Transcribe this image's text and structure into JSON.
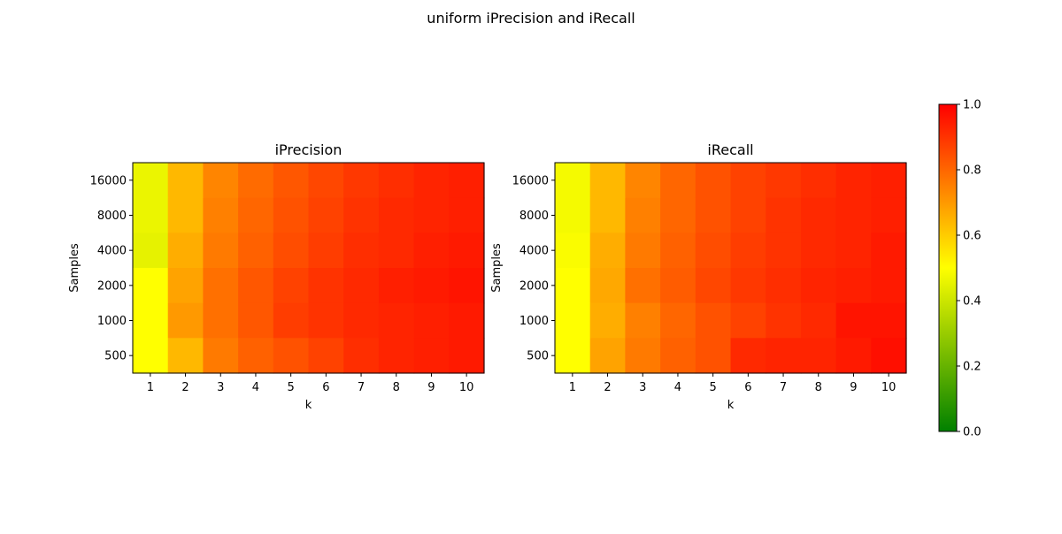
{
  "title": "uniform iPrecision and iRecall",
  "colorbar": {
    "ticks": [
      "0.0",
      "0.2",
      "0.4",
      "0.6",
      "0.8",
      "1.0"
    ],
    "tick_values": [
      0.0,
      0.2,
      0.4,
      0.6,
      0.8,
      1.0
    ],
    "colors": [
      "#008000",
      "#ffff00",
      "#ff0000"
    ]
  },
  "chart_data": [
    {
      "type": "heatmap",
      "title": "iPrecision",
      "xlabel": "k",
      "ylabel": "Samples",
      "x": [
        "1",
        "2",
        "3",
        "4",
        "5",
        "6",
        "7",
        "8",
        "9",
        "10"
      ],
      "y": [
        "16000",
        "8000",
        "4000",
        "2000",
        "1000",
        "500"
      ],
      "zlim": [
        0,
        1
      ],
      "values": [
        [
          0.46,
          0.64,
          0.74,
          0.79,
          0.83,
          0.86,
          0.89,
          0.91,
          0.93,
          0.94
        ],
        [
          0.46,
          0.64,
          0.75,
          0.8,
          0.84,
          0.87,
          0.9,
          0.92,
          0.93,
          0.94
        ],
        [
          0.45,
          0.66,
          0.76,
          0.81,
          0.85,
          0.88,
          0.91,
          0.92,
          0.94,
          0.95
        ],
        [
          0.5,
          0.68,
          0.78,
          0.83,
          0.87,
          0.9,
          0.92,
          0.94,
          0.95,
          0.96
        ],
        [
          0.5,
          0.7,
          0.78,
          0.83,
          0.88,
          0.9,
          0.92,
          0.93,
          0.94,
          0.95
        ],
        [
          0.5,
          0.64,
          0.76,
          0.81,
          0.84,
          0.87,
          0.91,
          0.93,
          0.94,
          0.95
        ]
      ]
    },
    {
      "type": "heatmap",
      "title": "iRecall",
      "xlabel": "k",
      "ylabel": "Samples",
      "x": [
        "1",
        "2",
        "3",
        "4",
        "5",
        "6",
        "7",
        "8",
        "9",
        "10"
      ],
      "y": [
        "16000",
        "8000",
        "4000",
        "2000",
        "1000",
        "500"
      ],
      "zlim": [
        0,
        1
      ],
      "values": [
        [
          0.48,
          0.64,
          0.74,
          0.8,
          0.84,
          0.87,
          0.89,
          0.91,
          0.93,
          0.94
        ],
        [
          0.48,
          0.64,
          0.75,
          0.8,
          0.84,
          0.87,
          0.9,
          0.92,
          0.93,
          0.94
        ],
        [
          0.49,
          0.66,
          0.76,
          0.81,
          0.85,
          0.88,
          0.9,
          0.92,
          0.93,
          0.95
        ],
        [
          0.5,
          0.67,
          0.78,
          0.82,
          0.86,
          0.89,
          0.91,
          0.93,
          0.94,
          0.95
        ],
        [
          0.5,
          0.66,
          0.75,
          0.8,
          0.84,
          0.87,
          0.9,
          0.92,
          0.96,
          0.96
        ],
        [
          0.5,
          0.68,
          0.76,
          0.81,
          0.84,
          0.92,
          0.93,
          0.93,
          0.95,
          0.97
        ]
      ]
    }
  ]
}
